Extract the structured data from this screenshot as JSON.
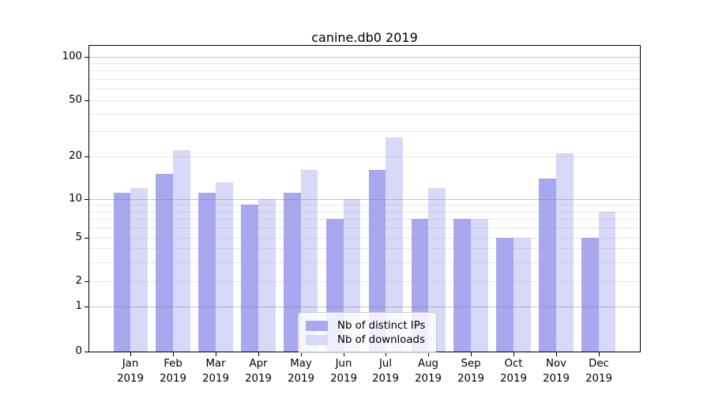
{
  "chart_data": {
    "type": "bar",
    "title": "canine.db0 2019",
    "categories": [
      "Jan 2019",
      "Feb 2019",
      "Mar 2019",
      "Apr 2019",
      "May 2019",
      "Jun 2019",
      "Jul 2019",
      "Aug 2019",
      "Sep 2019",
      "Oct 2019",
      "Nov 2019",
      "Dec 2019"
    ],
    "series": [
      {
        "name": "Nb of distinct IPs",
        "color": "#a8a8f0",
        "values": [
          11,
          15,
          11,
          9,
          11,
          7,
          16,
          7,
          7,
          5,
          14,
          5
        ]
      },
      {
        "name": "Nb of downloads",
        "color": "#d8d8f8",
        "values": [
          12,
          22,
          13,
          10,
          16,
          10,
          27,
          12,
          7,
          5,
          21,
          8
        ]
      }
    ],
    "xlabel": "",
    "ylabel": "",
    "yscale": "asinh-like (linear 0-1, logarithmic above)",
    "yticks": [
      0,
      1,
      2,
      5,
      10,
      20,
      50,
      100
    ],
    "ylim": [
      0,
      118
    ],
    "grid": "horizontal major+minor gridlines drawn over the bars",
    "legend": {
      "position": "bottom-center",
      "entries": [
        "Nb of distinct IPs",
        "Nb of downloads"
      ]
    },
    "y_tick_fractions": {
      "0": 0,
      "1": 0.1465,
      "2": 0.23,
      "5": 0.3721,
      "10": 0.4995,
      "20": 0.639,
      "50": 0.8225,
      "100": 0.9646
    },
    "major_gridlines": [
      1,
      10,
      100
    ],
    "minor_gridlines": [
      2,
      3,
      4,
      5,
      6,
      7,
      8,
      9,
      20,
      30,
      40,
      50,
      60,
      70,
      80,
      90
    ],
    "colors": {
      "bar_ips": "#a8a8f0",
      "bar_downloads": "#d8d8f8",
      "major_grid": "rgba(130,130,130,0.45)",
      "minor_grid": "rgba(160,160,160,0.25)",
      "spine": "#000000",
      "text": "#000000",
      "legend_border": "#cccccc",
      "legend_bg": "rgba(255,255,255,0.8)",
      "background": "#ffffff"
    }
  }
}
